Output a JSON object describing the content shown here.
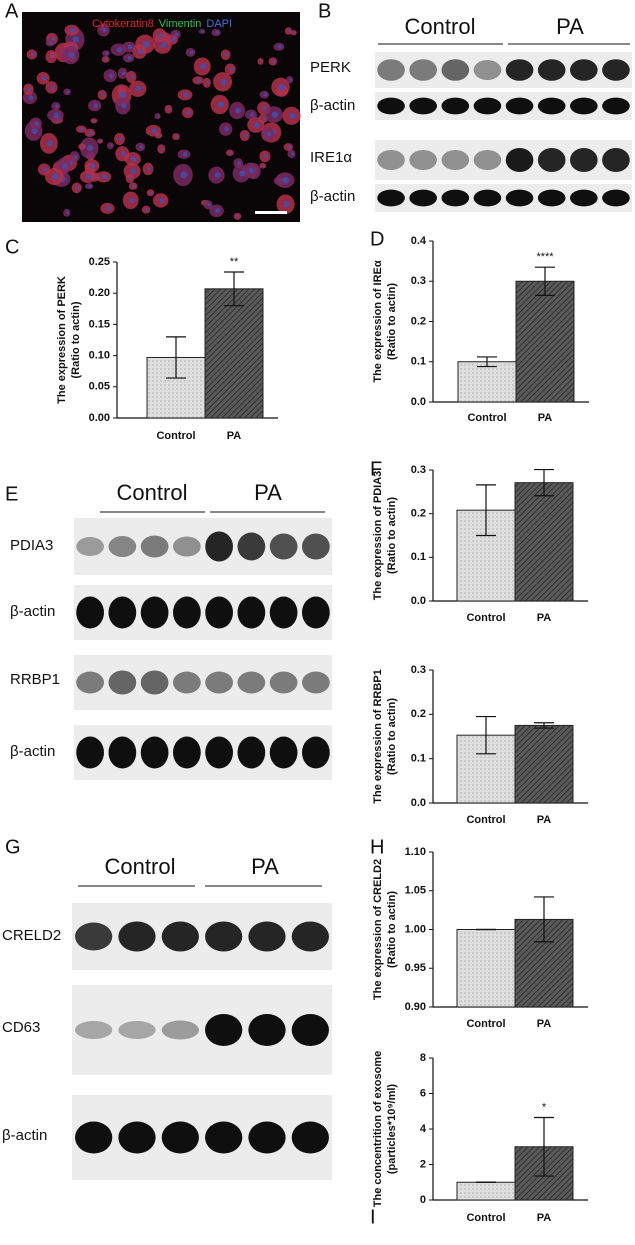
{
  "panel_labels": [
    "A",
    "B",
    "C",
    "D",
    "E",
    "F",
    "G",
    "H",
    "I"
  ],
  "micrograph": {
    "legend": [
      {
        "text": "Cytokeratin8",
        "color": "#e0202a"
      },
      {
        "text": "Vimentin",
        "color": "#2fc050"
      },
      {
        "text": "DAPI",
        "color": "#4a6ae0"
      }
    ]
  },
  "blots": [
    {
      "groups": [
        "Control",
        "PA"
      ],
      "rows": [
        "PERK",
        "β-actin",
        "IRE1α",
        "β-actin"
      ]
    },
    {
      "groups": [
        "Control",
        "PA"
      ],
      "rows": [
        "PDIA3",
        "β-actin",
        "RRBP1",
        "β-actin"
      ]
    },
    {
      "groups": [
        "Control",
        "PA"
      ],
      "rows": [
        "CRELD2",
        "CD63",
        "β-actin"
      ]
    }
  ],
  "chart_data": [
    {
      "type": "bar",
      "ylabel": [
        "The expression of PERK",
        "(Ratio to actin)"
      ],
      "categories": [
        "Control",
        "PA"
      ],
      "values": [
        0.097,
        0.207
      ],
      "errors": [
        0.033,
        0.027
      ],
      "annotation": "**",
      "colors": [
        "#dcdcdc",
        "#555555"
      ],
      "ylim": [
        0,
        0.25
      ],
      "yticks": [
        {
          "value": 0,
          "label": "0.00"
        },
        {
          "value": 0.05,
          "label": "0.05"
        },
        {
          "value": 0.1,
          "label": "0.10"
        },
        {
          "value": 0.15,
          "label": "0.15"
        },
        {
          "value": 0.2,
          "label": "0.20"
        },
        {
          "value": 0.25,
          "label": "0.25"
        }
      ]
    },
    {
      "type": "bar",
      "ylabel": [
        "The expression of IREα",
        "(Ratio to actin)"
      ],
      "categories": [
        "Control",
        "PA"
      ],
      "values": [
        0.1,
        0.3
      ],
      "errors": [
        0.012,
        0.035
      ],
      "annotation": "****",
      "colors": [
        "#dcdcdc",
        "#555555"
      ],
      "ylim": [
        0,
        0.4
      ],
      "yticks": [
        {
          "value": 0,
          "label": "0.0"
        },
        {
          "value": 0.1,
          "label": "0.1"
        },
        {
          "value": 0.2,
          "label": "0.2"
        },
        {
          "value": 0.3,
          "label": "0.3"
        },
        {
          "value": 0.4,
          "label": "0.4"
        }
      ]
    },
    {
      "type": "bar",
      "ylabel": [
        "The expression of PDIA3",
        "(Ratio to actin)"
      ],
      "categories": [
        "Control",
        "PA"
      ],
      "values": [
        0.208,
        0.271
      ],
      "errors": [
        0.058,
        0.03
      ],
      "colors": [
        "#dcdcdc",
        "#555555"
      ],
      "ylim": [
        0,
        0.3
      ],
      "yticks": [
        {
          "value": 0,
          "label": "0.0"
        },
        {
          "value": 0.1,
          "label": "0.1"
        },
        {
          "value": 0.2,
          "label": "0.2"
        },
        {
          "value": 0.3,
          "label": "0.3"
        }
      ]
    },
    {
      "type": "bar",
      "ylabel": [
        "The expression of RRBP1",
        "(Ratio to actin)"
      ],
      "categories": [
        "Control",
        "PA"
      ],
      "values": [
        0.153,
        0.175
      ],
      "errors": [
        0.042,
        0.006
      ],
      "colors": [
        "#dcdcdc",
        "#555555"
      ],
      "ylim": [
        0,
        0.3
      ],
      "yticks": [
        {
          "value": 0,
          "label": "0.0"
        },
        {
          "value": 0.1,
          "label": "0.1"
        },
        {
          "value": 0.2,
          "label": "0.2"
        },
        {
          "value": 0.3,
          "label": "0.3"
        }
      ]
    },
    {
      "type": "bar",
      "ylabel": [
        "The expression of CRELD2",
        "(Ratio to actin)"
      ],
      "categories": [
        "Control",
        "PA"
      ],
      "values": [
        1.0,
        1.013
      ],
      "errors": [
        0,
        0.029
      ],
      "colors": [
        "#dcdcdc",
        "#555555"
      ],
      "ylim": [
        0.9,
        1.1
      ],
      "yticks": [
        {
          "value": 0.9,
          "label": "0.90"
        },
        {
          "value": 0.95,
          "label": "0.95"
        },
        {
          "value": 1.0,
          "label": "1.00"
        },
        {
          "value": 1.05,
          "label": "1.05"
        },
        {
          "value": 1.1,
          "label": "1.10"
        }
      ]
    },
    {
      "type": "bar",
      "ylabel": [
        "The concentrition of exosome",
        "(particles*10⁹/ml)"
      ],
      "categories": [
        "Control",
        "PA"
      ],
      "values": [
        1.0,
        3.0
      ],
      "errors": [
        0,
        1.65
      ],
      "annotation": "*",
      "colors": [
        "#dcdcdc",
        "#555555"
      ],
      "ylim": [
        0,
        8
      ],
      "yticks": [
        0,
        2,
        4,
        6,
        8
      ]
    }
  ]
}
